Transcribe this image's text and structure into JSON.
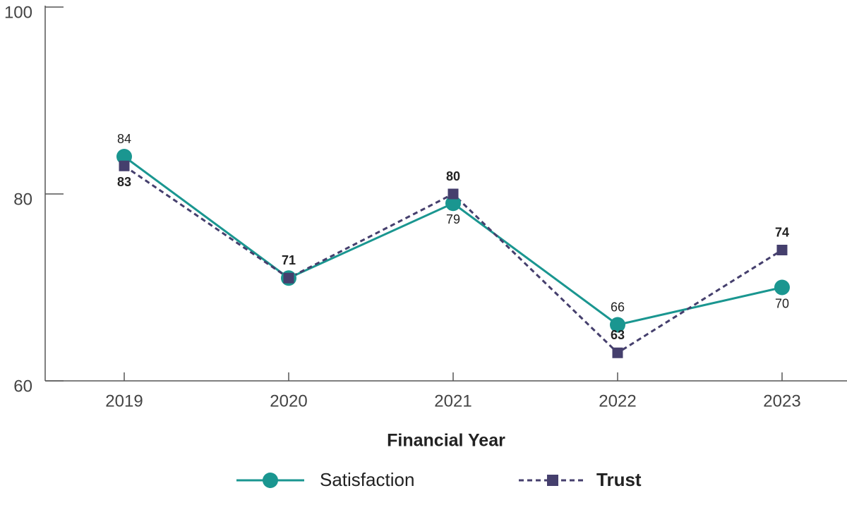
{
  "chart_data": {
    "type": "line",
    "x_label": "Financial Year",
    "categories": [
      "2019",
      "2020",
      "2021",
      "2022",
      "2023"
    ],
    "series": [
      {
        "name": "Satisfaction",
        "color": "#1a9690",
        "marker": "circle",
        "dashed": false,
        "bold_labels": false,
        "values": [
          84,
          71,
          79,
          66,
          70
        ]
      },
      {
        "name": "Trust",
        "color": "#453f6d",
        "marker": "square",
        "dashed": true,
        "bold_labels": true,
        "values": [
          83,
          71,
          80,
          63,
          74
        ]
      }
    ],
    "ylim": [
      60,
      100
    ],
    "yticks": [
      60,
      80,
      100
    ],
    "grid": false
  }
}
